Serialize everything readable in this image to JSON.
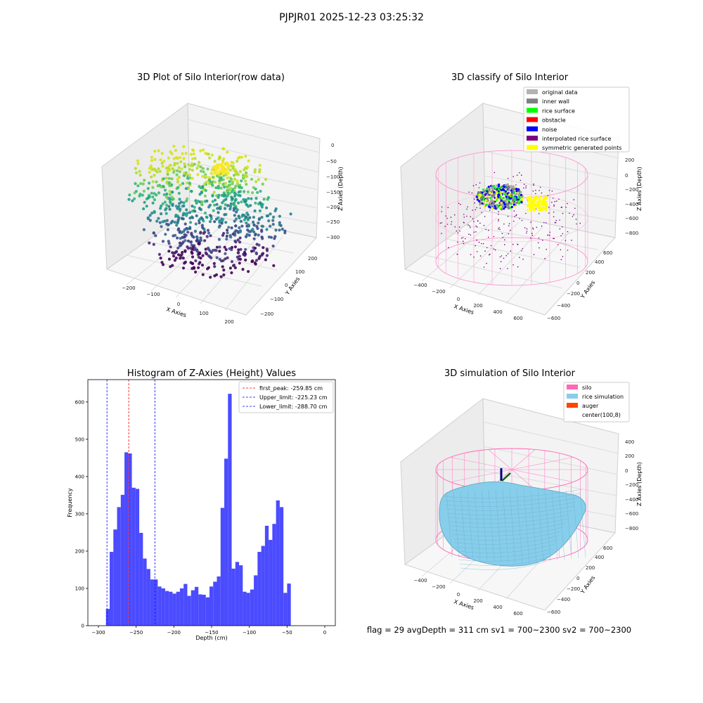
{
  "figure": {
    "suptitle": "PJPJR01 2025-12-23 03:25:32",
    "footer": "flag = 29  avgDepth = 311 cm  sv1 = 700~2300  sv2 = 700~2300"
  },
  "colors": {
    "histogram_bar": "#4b4bff",
    "first_peak_line": "#ff0000",
    "limit_line": "#0000ff",
    "silo_wire": "#ff88cc",
    "rice_surface": "#87ceeb",
    "grid_pane": "#f2f2f2"
  },
  "chart_data": [
    {
      "type": "scatter",
      "projection": "3d",
      "title": "3D Plot of Silo Interior(row data)",
      "xlabel": "X Axies",
      "ylabel": "Y Axies",
      "zlabel": "Z Axies (Depth)",
      "x_ticks": [
        "−200",
        "−100",
        "0",
        "100",
        "200"
      ],
      "y_ticks": [
        "−200",
        "−100",
        "0",
        "100",
        "200"
      ],
      "z_ticks": [
        "0",
        "−50",
        "−100",
        "−150",
        "−200",
        "−250",
        "−300"
      ],
      "zlim": [
        -300,
        0
      ],
      "colormap": "viridis",
      "grid": true
    },
    {
      "type": "scatter",
      "projection": "3d",
      "title": "3D classify of Silo Interior",
      "xlabel": "X Axies",
      "ylabel": "Y Axies",
      "zlabel": "Z Axies (Depth)",
      "x_ticks": [
        "−400",
        "−200",
        "0",
        "200",
        "400",
        "600"
      ],
      "y_ticks": [
        "−600",
        "−400",
        "−200",
        "0",
        "200",
        "400",
        "600"
      ],
      "z_ticks": [
        "200",
        "0",
        "−200",
        "−400",
        "−600",
        "−800"
      ],
      "legend_position": "top-right",
      "legend": [
        {
          "label": "original data",
          "color": "#b3b3b3"
        },
        {
          "label": "inner wall",
          "color": "#808080"
        },
        {
          "label": "rice surface",
          "color": "#00ff00"
        },
        {
          "label": "obstacle",
          "color": "#ff0000"
        },
        {
          "label": "noise",
          "color": "#0000ff"
        },
        {
          "label": "interpolated rice surface",
          "color": "#800080"
        },
        {
          "label": "symmetric generated points",
          "color": "#ffff00"
        }
      ],
      "grid": true
    },
    {
      "type": "bar",
      "title": "Histogram of Z-Axies (Height) Values",
      "xlabel": "Depth (cm)",
      "ylabel": "Frequency",
      "xlim": [
        -314,
        14
      ],
      "ylim": [
        0,
        660
      ],
      "x_ticks": [
        -300,
        -250,
        -200,
        -150,
        -100,
        -50,
        0
      ],
      "y_ticks": [
        0,
        100,
        200,
        300,
        400,
        500,
        600
      ],
      "bin_start": -290,
      "bin_width": 4.9,
      "values": [
        45,
        198,
        258,
        318,
        351,
        465,
        462,
        370,
        367,
        249,
        180,
        152,
        124,
        124,
        105,
        100,
        93,
        91,
        86,
        91,
        100,
        112,
        80,
        95,
        104,
        84,
        83,
        76,
        105,
        118,
        132,
        316,
        448,
        622,
        153,
        171,
        162,
        91,
        88,
        97,
        135,
        198,
        214,
        268,
        230,
        273,
        336,
        318,
        88,
        113
      ],
      "vlines": [
        {
          "label": "first_peak: -259.85 cm",
          "x": -259.85,
          "color": "#ff0000"
        },
        {
          "label": "Upper_limit: -225.23 cm",
          "x": -225.23,
          "color": "#0000ff"
        },
        {
          "label": "Lower_limit: -288.70 cm",
          "x": -288.7,
          "color": "#0000ff"
        }
      ],
      "legend_position": "top-right"
    },
    {
      "type": "surface",
      "projection": "3d",
      "title": "3D simulation of Silo Interior",
      "xlabel": "X Axies",
      "ylabel": "Y Axies",
      "zlabel": "Z Axies (Depth)",
      "x_ticks": [
        "−400",
        "−200",
        "0",
        "200",
        "400",
        "600"
      ],
      "y_ticks": [
        "−600",
        "−400",
        "−200",
        "0",
        "200",
        "400",
        "600"
      ],
      "z_ticks": [
        "400",
        "200",
        "0",
        "−200",
        "−400",
        "−600",
        "−800"
      ],
      "legend_position": "top-right",
      "legend": [
        {
          "label": "silo",
          "color": "#ff69b4"
        },
        {
          "label": "rice simulation",
          "color": "#87ceeb"
        },
        {
          "label": "auger",
          "color": "#ff4500"
        },
        {
          "label": "center(100,8)",
          "color": ""
        }
      ],
      "grid": true
    }
  ]
}
